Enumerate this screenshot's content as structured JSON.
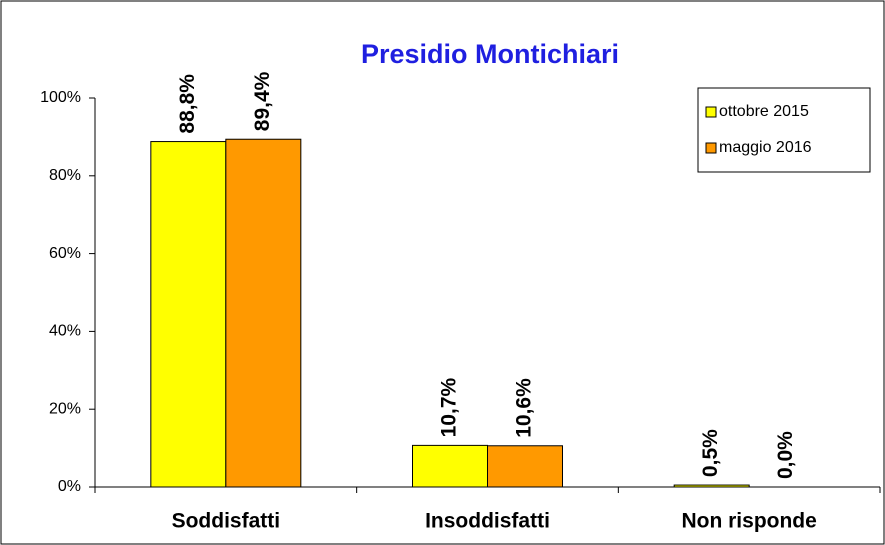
{
  "chart_data": {
    "type": "bar",
    "title": "Presidio Montichiari",
    "categories": [
      "Soddisfatti",
      "Insoddisfatti",
      "Non risponde"
    ],
    "series": [
      {
        "name": "ottobre 2015",
        "color": "#ffff00",
        "values": [
          88.8,
          10.7,
          0.5
        ],
        "value_labels": [
          "88,8%",
          "10,7%",
          "0,5%"
        ]
      },
      {
        "name": "maggio 2016",
        "color": "#ff9900",
        "values": [
          89.4,
          10.6,
          0.0
        ],
        "value_labels": [
          "89,4%",
          "10,6%",
          "0,0%"
        ]
      }
    ],
    "ylim": [
      0,
      100
    ],
    "yticks": [
      {
        "value": 0,
        "label": "0%"
      },
      {
        "value": 20,
        "label": "20%"
      },
      {
        "value": 40,
        "label": "40%"
      },
      {
        "value": 60,
        "label": "60%"
      },
      {
        "value": 80,
        "label": "80%"
      },
      {
        "value": 100,
        "label": "100%"
      }
    ],
    "legend": "top-right",
    "grid": false
  }
}
